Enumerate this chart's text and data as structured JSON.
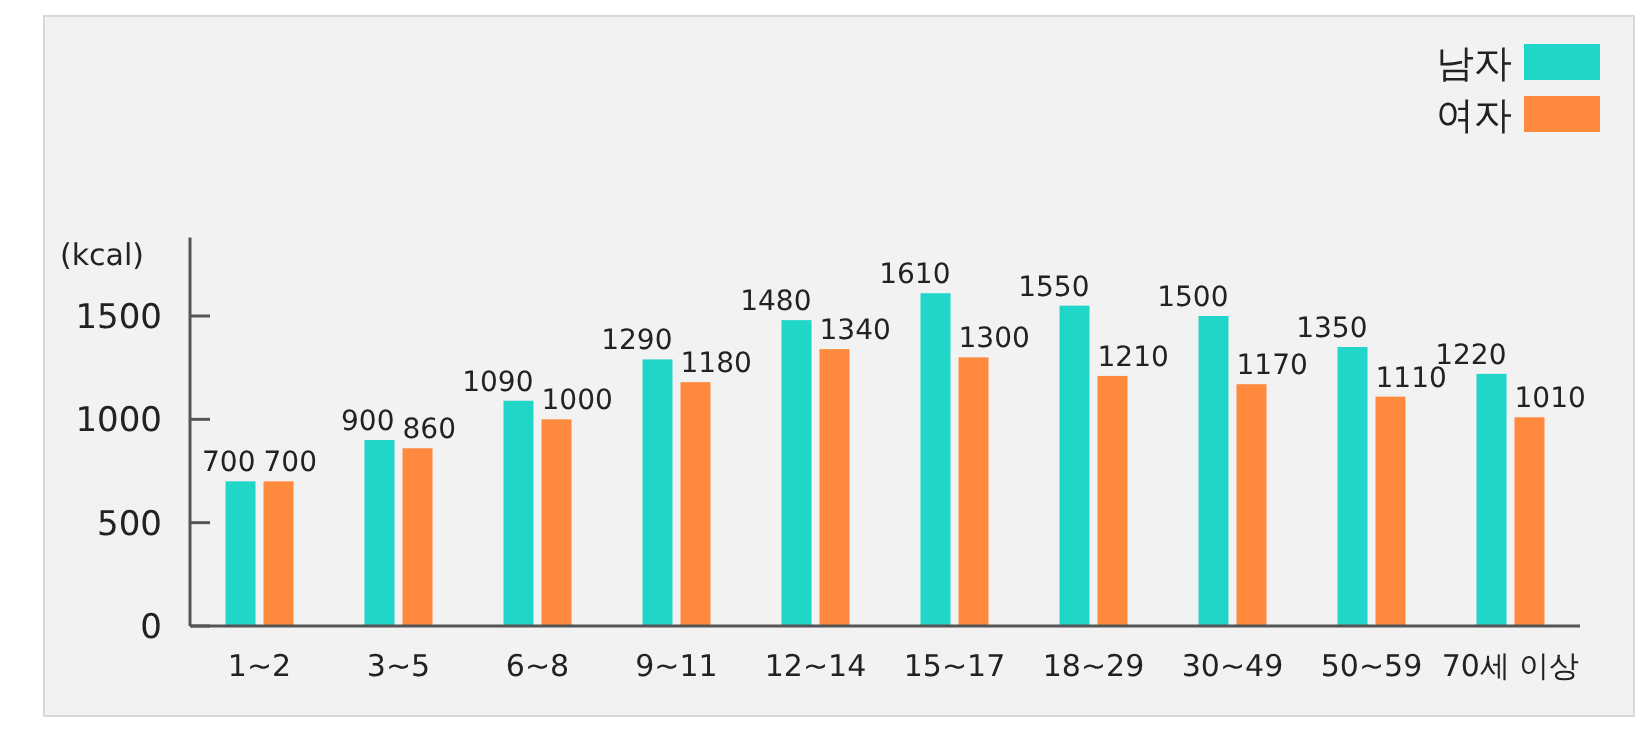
{
  "chart_data": {
    "type": "bar",
    "ylabel": "(kcal)",
    "categories": [
      "1~2",
      "3~5",
      "6~8",
      "9~11",
      "12~14",
      "15~17",
      "18~29",
      "30~49",
      "50~59",
      "70세 이상"
    ],
    "series": [
      {
        "name": "남자",
        "color": "#1fd6c8",
        "values": [
          700,
          900,
          1090,
          1290,
          1480,
          1610,
          1550,
          1500,
          1350,
          1220
        ]
      },
      {
        "name": "여자",
        "color": "#ff8a3d",
        "values": [
          700,
          860,
          1000,
          1180,
          1340,
          1300,
          1210,
          1170,
          1110,
          1010
        ]
      }
    ],
    "ylim": [
      0,
      1880
    ],
    "yticks": [
      0,
      500,
      1000,
      1500
    ],
    "data_labels": true,
    "legend": "top right"
  }
}
